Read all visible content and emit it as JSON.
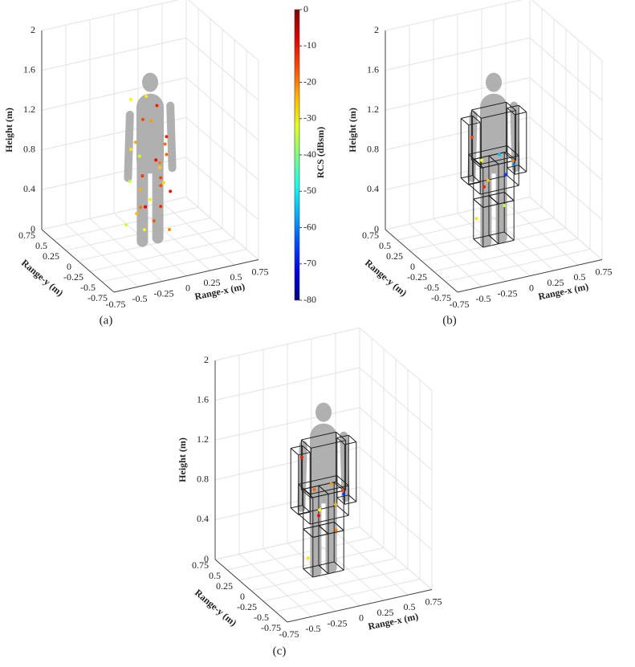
{
  "chart_data": [
    {
      "type": "scatter3d",
      "caption": "(a)",
      "xlabel": "Range-x (m)",
      "ylabel": "Range-y (m)",
      "zlabel": "Height (m)",
      "xlim": [
        -0.75,
        0.75
      ],
      "ylim": [
        -0.75,
        0.75
      ],
      "zlim": [
        0,
        2
      ],
      "xticks": [
        -0.75,
        -0.5,
        -0.25,
        0,
        0.25,
        0.5,
        0.75
      ],
      "yticks": [
        -0.75,
        -0.5,
        -0.25,
        0,
        0.25,
        0.5,
        0.75
      ],
      "zticks": [
        0,
        0.4,
        0.8,
        1.2,
        1.6,
        2
      ],
      "grid": true,
      "x": [
        -0.15,
        -0.1,
        0.05,
        0.12,
        -0.2,
        0.18,
        0,
        -0.05,
        0.1,
        -0.12,
        0.15,
        -0.18,
        0.08,
        -0.08,
        0.2,
        -0.15,
        0.05,
        0.12,
        -0.1,
        0.02,
        -0.2,
        0.16,
        -0.04,
        0.1,
        -0.14,
        0.06,
        0.18,
        -0.06,
        0,
        0.14
      ],
      "y": [
        0.1,
        -0.05,
        0.08,
        -0.1,
        0,
        0.05,
        -0.12,
        0.12,
        0,
        -0.08,
        0.1,
        0.06,
        -0.06,
        0.04,
        -0.02,
        -0.1,
        0.1,
        0.02,
        0.08,
        -0.04,
        0.1,
        -0.08,
        0,
        0.06,
        0.02,
        -0.1,
        0.08,
        -0.02,
        0.12,
        -0.06
      ],
      "z": [
        1.45,
        1.3,
        1.2,
        1.1,
        1.0,
        0.95,
        0.9,
        0.85,
        0.8,
        0.75,
        0.7,
        0.65,
        0.6,
        0.55,
        0.5,
        0.45,
        0.4,
        0.35,
        0.3,
        0.25,
        0.2,
        0.15,
        1.5,
        1.35,
        1.05,
        0.7,
        0.55,
        0.4,
        0.1,
        0.9
      ],
      "values": [
        -30,
        -15,
        -22,
        -12,
        -28,
        -18,
        -10,
        -33,
        -20,
        -14,
        -26,
        -35,
        -16,
        -24,
        -11,
        -19,
        -31,
        -13,
        -25,
        -17,
        -34,
        -21,
        -29,
        -12,
        -23,
        -15,
        -27,
        -9,
        -32,
        -18
      ],
      "colorbar": {
        "label": "RCS (dBsm)",
        "clim": [
          -80,
          0
        ],
        "ticks": [
          0,
          -10,
          -20,
          -30,
          -40,
          -50,
          -60,
          -70,
          -80
        ]
      }
    },
    {
      "type": "scatter3d",
      "caption": "(b)",
      "xlabel": "Range-x (m)",
      "ylabel": "Range-y (m)",
      "zlabel": "Height (m)",
      "xlim": [
        -0.75,
        0.75
      ],
      "ylim": [
        -0.75,
        0.75
      ],
      "zlim": [
        0,
        2
      ],
      "xticks": [
        -0.75,
        -0.5,
        -0.25,
        0,
        0.25,
        0.5,
        0.75
      ],
      "yticks": [
        -0.75,
        -0.5,
        -0.25,
        0,
        0.25,
        0.5,
        0.75
      ],
      "zticks": [
        0,
        0.4,
        0.8,
        1.2,
        1.6,
        2
      ],
      "grid": true,
      "x": [
        -0.2,
        -0.15,
        0.1,
        0.2,
        -0.1,
        0.15,
        -0.05,
        0.08,
        -0.18,
        0.22
      ],
      "y": [
        0.05,
        -0.05,
        0.08,
        0,
        -0.08,
        0.05,
        0.1,
        -0.06,
        0,
        0.02
      ],
      "z": [
        1.1,
        0.9,
        0.85,
        0.8,
        0.7,
        0.65,
        0.55,
        0.4,
        0.3,
        0.75
      ],
      "values": [
        -15,
        -30,
        -55,
        -20,
        -25,
        -65,
        -12,
        -35,
        -28,
        -60
      ]
    },
    {
      "type": "scatter3d",
      "caption": "(c)",
      "xlabel": "Range-x (m)",
      "ylabel": "Range-y (m)",
      "zlabel": "Height (m)",
      "xlim": [
        -0.75,
        0.75
      ],
      "ylim": [
        -0.75,
        0.75
      ],
      "zlim": [
        0,
        2
      ],
      "xticks": [
        -0.75,
        -0.5,
        -0.25,
        0,
        0.25,
        0.5,
        0.75
      ],
      "yticks": [
        -0.75,
        -0.5,
        -0.25,
        0,
        0.25,
        0.5,
        0.75
      ],
      "zticks": [
        0,
        0.4,
        0.8,
        1.2,
        1.6,
        2
      ],
      "grid": true,
      "x": [
        -0.2,
        -0.12,
        0.12,
        0.2,
        -0.08,
        0.15,
        0,
        0.1,
        -0.16,
        0.22
      ],
      "y": [
        0.05,
        -0.05,
        0.08,
        0,
        -0.08,
        0.05,
        0.1,
        -0.06,
        0,
        0.02
      ],
      "z": [
        1.2,
        0.9,
        0.85,
        0.8,
        0.7,
        0.65,
        0.55,
        0.45,
        0.2,
        0.75
      ],
      "values": [
        -12,
        -18,
        -22,
        -15,
        -30,
        -25,
        -10,
        -20,
        -28,
        -65
      ]
    }
  ]
}
